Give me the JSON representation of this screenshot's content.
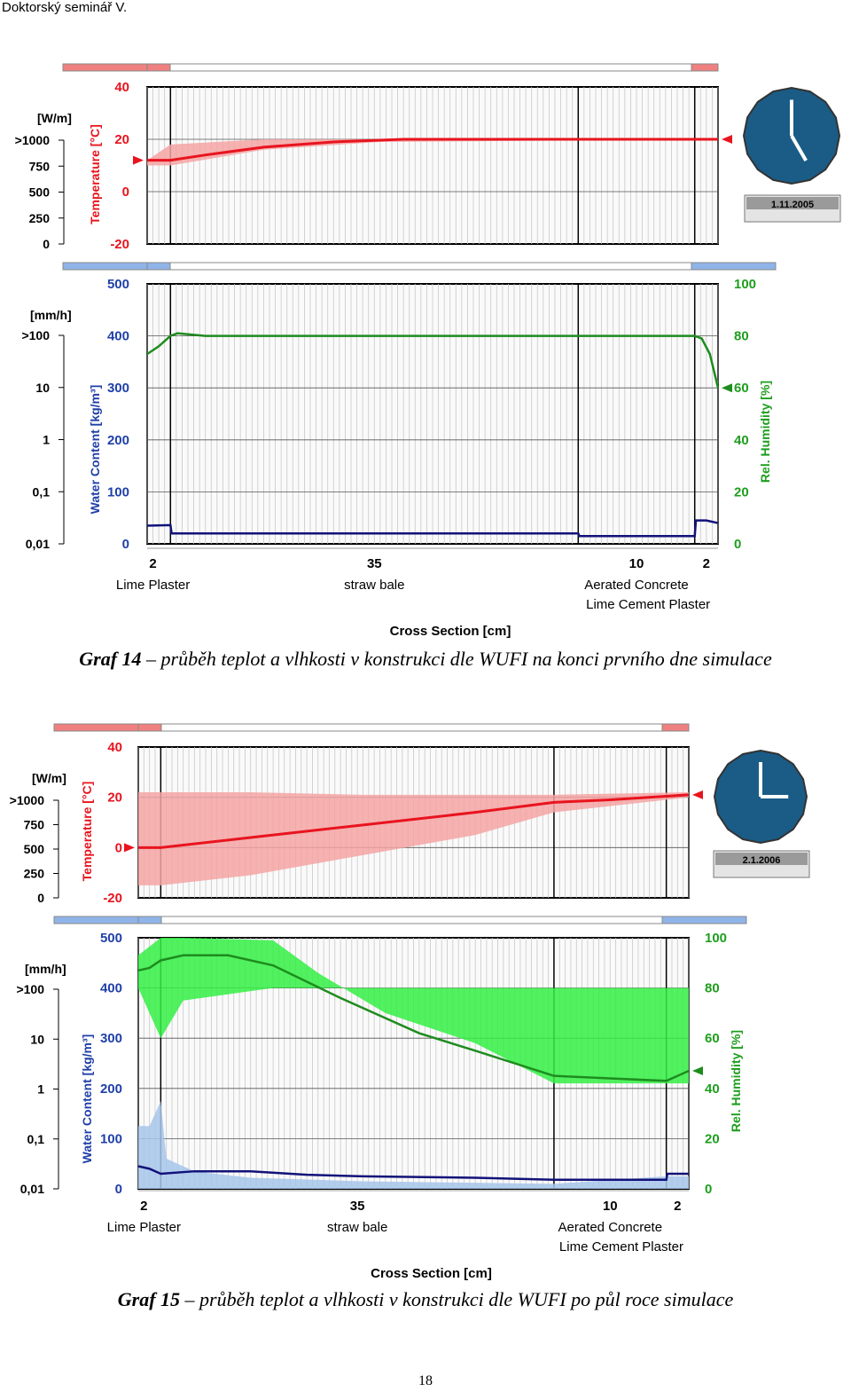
{
  "header": {
    "text": "Doktorský seminář V."
  },
  "figures": [
    {
      "caption_num": "Graf 14",
      "caption_text": "– průběh teplot a vlhkosti v konstrukci dle WUFI na konci prvního dne simulace",
      "date": "1.11.2005",
      "clock": {
        "hour": 5,
        "minute": 0
      },
      "flux_label": "[W/m]",
      "flux_ticks": [
        ">1000",
        "750",
        "500",
        "250",
        "0"
      ],
      "temp_label": "Temperature [°C]",
      "temp_ticks": [
        "40",
        "20",
        "0",
        "-20"
      ],
      "rain_label": "[mm/h]",
      "rain_ticks": [
        ">100",
        "10",
        "1",
        "0,1",
        "0,01"
      ],
      "wc_label": "Water Content [kg/m³]",
      "wc_ticks": [
        "500",
        "400",
        "300",
        "200",
        "100",
        "0"
      ],
      "rh_label": "Rel. Humidity [%]",
      "rh_ticks": [
        "100",
        "80",
        "60",
        "40",
        "20",
        "0"
      ],
      "layers": [
        {
          "thickness": "2",
          "name": "Lime Plaster"
        },
        {
          "thickness": "35",
          "name": "straw bale"
        },
        {
          "thickness": "10",
          "name": "Aerated Concrete"
        },
        {
          "thickness": "2",
          "name": "Lime Cement Plaster"
        }
      ],
      "xaxis_label": "Cross Section [cm]",
      "series": {
        "temperature": [
          [
            0,
            12
          ],
          [
            2,
            12
          ],
          [
            5,
            14
          ],
          [
            10,
            17
          ],
          [
            16,
            19
          ],
          [
            22,
            20
          ],
          [
            49,
            20
          ]
        ],
        "rel_humidity": [
          [
            0,
            73
          ],
          [
            1,
            76
          ],
          [
            2,
            80
          ],
          [
            2.6,
            81
          ],
          [
            5,
            80
          ],
          [
            47,
            80
          ],
          [
            47.6,
            79
          ],
          [
            48.3,
            73
          ],
          [
            49,
            60
          ]
        ],
        "water_content": [
          [
            0,
            35
          ],
          [
            2,
            36
          ],
          [
            2.1,
            20
          ],
          [
            37,
            20
          ],
          [
            37.1,
            15
          ],
          [
            47,
            15
          ],
          [
            47.1,
            45
          ],
          [
            48,
            45
          ],
          [
            49,
            40
          ]
        ]
      },
      "temp_band": [
        [
          0,
          10,
          12
        ],
        [
          2,
          10,
          18
        ],
        [
          10,
          16,
          20
        ],
        [
          20,
          19,
          20
        ],
        [
          49,
          20,
          20
        ]
      ]
    },
    {
      "caption_num": "Graf 15",
      "caption_text": "– průběh teplot a vlhkosti v konstrukci dle WUFI po půl roce simulace",
      "date": "2.1.2006",
      "clock": {
        "hour": 3,
        "minute": 0
      },
      "flux_label": "[W/m]",
      "flux_ticks": [
        ">1000",
        "750",
        "500",
        "250",
        "0"
      ],
      "temp_label": "Temperature [°C]",
      "temp_ticks": [
        "40",
        "20",
        "0",
        "-20"
      ],
      "rain_label": "[mm/h]",
      "rain_ticks": [
        ">100",
        "10",
        "1",
        "0,1",
        "0,01"
      ],
      "wc_label": "Water Content [kg/m³]",
      "wc_ticks": [
        "500",
        "400",
        "300",
        "200",
        "100",
        "0"
      ],
      "rh_label": "Rel. Humidity [%]",
      "rh_ticks": [
        "100",
        "80",
        "60",
        "40",
        "20",
        "0"
      ],
      "layers": [
        {
          "thickness": "2",
          "name": "Lime Plaster"
        },
        {
          "thickness": "35",
          "name": "straw bale"
        },
        {
          "thickness": "10",
          "name": "Aerated Concrete"
        },
        {
          "thickness": "2",
          "name": "Lime Cement Plaster"
        }
      ],
      "xaxis_label": "Cross Section [cm]",
      "series": {
        "temperature": [
          [
            0,
            0
          ],
          [
            2,
            0
          ],
          [
            10,
            4
          ],
          [
            20,
            9
          ],
          [
            30,
            14
          ],
          [
            37,
            18
          ],
          [
            42,
            19
          ],
          [
            49,
            21
          ]
        ],
        "rel_humidity": [
          [
            0,
            87
          ],
          [
            1,
            88
          ],
          [
            2,
            91
          ],
          [
            4,
            93
          ],
          [
            8,
            93
          ],
          [
            12,
            89
          ],
          [
            18,
            76
          ],
          [
            25,
            62
          ],
          [
            30,
            55
          ],
          [
            37,
            45
          ],
          [
            42,
            44
          ],
          [
            47,
            43
          ],
          [
            49,
            47
          ]
        ],
        "water_content": [
          [
            0,
            45
          ],
          [
            1,
            40
          ],
          [
            2,
            30
          ],
          [
            5,
            35
          ],
          [
            10,
            35
          ],
          [
            15,
            28
          ],
          [
            20,
            25
          ],
          [
            30,
            22
          ],
          [
            37,
            18
          ],
          [
            47,
            18
          ],
          [
            47.1,
            30
          ],
          [
            49,
            30
          ]
        ]
      },
      "temp_band": [
        [
          0,
          -15,
          22
        ],
        [
          2,
          -15,
          22
        ],
        [
          10,
          -11,
          22
        ],
        [
          20,
          -3,
          21
        ],
        [
          30,
          5,
          21
        ],
        [
          37,
          14,
          21
        ],
        [
          49,
          20,
          22
        ]
      ],
      "rh_band": [
        [
          0,
          80,
          93
        ],
        [
          2,
          60,
          100
        ],
        [
          4,
          75,
          100
        ],
        [
          12,
          80,
          99
        ],
        [
          16,
          80,
          86
        ],
        [
          22,
          80,
          70
        ],
        [
          30,
          80,
          58
        ],
        [
          37,
          80,
          42
        ],
        [
          47,
          80,
          42
        ],
        [
          49,
          80,
          42
        ]
      ],
      "wc_band": [
        [
          0,
          0,
          125
        ],
        [
          1,
          0,
          125
        ],
        [
          2,
          0,
          175
        ],
        [
          2.5,
          0,
          60
        ],
        [
          5,
          0,
          35
        ],
        [
          10,
          0,
          22
        ],
        [
          20,
          0,
          15
        ],
        [
          37,
          0,
          10
        ],
        [
          47,
          0,
          25
        ],
        [
          49,
          0,
          25
        ]
      ]
    }
  ],
  "page_number": "18"
}
